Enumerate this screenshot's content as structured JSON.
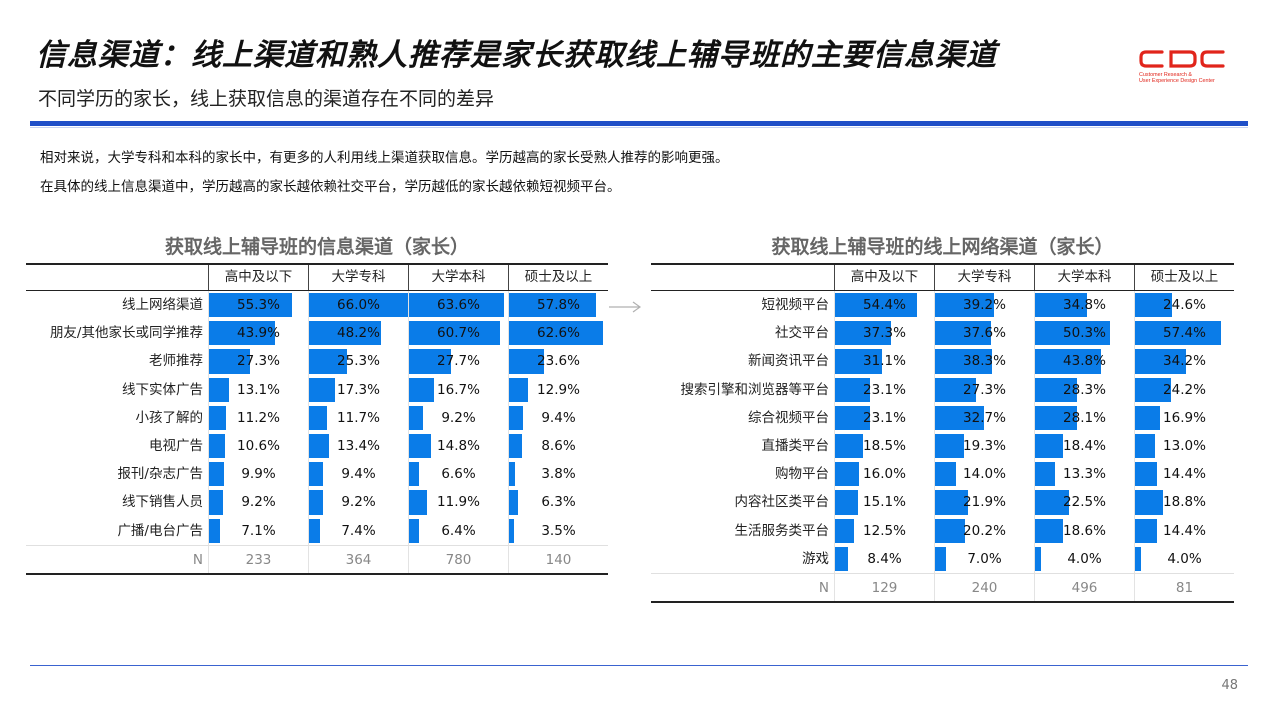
{
  "header": {
    "title": "信息渠道：线上渠道和熟人推荐是家长获取线上辅导班的主要信息渠道",
    "subtitle": "不同学历的家长，线上获取信息的渠道存在不同的差异",
    "logo": {
      "mark": "CDC",
      "line1": "Customer Research &",
      "line2": "User Experience Design Center",
      "color": "#e1251b"
    },
    "accent_color": "#1f4fc8"
  },
  "description": {
    "line1": "相对来说，大学专科和本科的家长中，有更多的人利用线上渠道获取信息。学历越高的家长受熟人推荐的影响更强。",
    "line2": "在具体的线上信息渠道中，学历越高的家长越依赖社交平台，学历越低的家长越依赖短视频平台。"
  },
  "left_table": {
    "title": "获取线上辅导班的信息渠道（家长）",
    "columns": [
      "高中及以下",
      "大学专科",
      "大学本科",
      "硕士及以上"
    ],
    "rows": [
      {
        "label": "线上网络渠道",
        "values": [
          "55.3%",
          "66.0%",
          "63.6%",
          "57.8%"
        ]
      },
      {
        "label": "朋友/其他家长或同学推荐",
        "values": [
          "43.9%",
          "48.2%",
          "60.7%",
          "62.6%"
        ]
      },
      {
        "label": "老师推荐",
        "values": [
          "27.3%",
          "25.3%",
          "27.7%",
          "23.6%"
        ]
      },
      {
        "label": "线下实体广告",
        "values": [
          "13.1%",
          "17.3%",
          "16.7%",
          "12.9%"
        ]
      },
      {
        "label": "小孩了解的",
        "values": [
          "11.2%",
          "11.7%",
          "9.2%",
          "9.4%"
        ]
      },
      {
        "label": "电视广告",
        "values": [
          "10.6%",
          "13.4%",
          "14.8%",
          "8.6%"
        ]
      },
      {
        "label": "报刊/杂志广告",
        "values": [
          "9.9%",
          "9.4%",
          "6.6%",
          "3.8%"
        ]
      },
      {
        "label": "线下销售人员",
        "values": [
          "9.2%",
          "9.2%",
          "11.9%",
          "6.3%"
        ]
      },
      {
        "label": "广播/电台广告",
        "values": [
          "7.1%",
          "7.4%",
          "6.4%",
          "3.5%"
        ]
      }
    ],
    "n_row": {
      "label": "N",
      "values": [
        "233",
        "364",
        "780",
        "140"
      ]
    }
  },
  "right_table": {
    "title": "获取线上辅导班的线上网络渠道（家长）",
    "columns": [
      "高中及以下",
      "大学专科",
      "大学本科",
      "硕士及以上"
    ],
    "rows": [
      {
        "label": "短视频平台",
        "values": [
          "54.4%",
          "39.2%",
          "34.8%",
          "24.6%"
        ]
      },
      {
        "label": "社交平台",
        "values": [
          "37.3%",
          "37.6%",
          "50.3%",
          "57.4%"
        ]
      },
      {
        "label": "新闻资讯平台",
        "values": [
          "31.1%",
          "38.3%",
          "43.8%",
          "34.2%"
        ]
      },
      {
        "label": "搜索引擎和浏览器等平台",
        "values": [
          "23.1%",
          "27.3%",
          "28.3%",
          "24.2%"
        ]
      },
      {
        "label": "综合视频平台",
        "values": [
          "23.1%",
          "32.7%",
          "28.1%",
          "16.9%"
        ]
      },
      {
        "label": "直播类平台",
        "values": [
          "18.5%",
          "19.3%",
          "18.4%",
          "13.0%"
        ]
      },
      {
        "label": "购物平台",
        "values": [
          "16.0%",
          "14.0%",
          "13.3%",
          "14.4%"
        ]
      },
      {
        "label": "内容社区类平台",
        "values": [
          "15.1%",
          "21.9%",
          "22.5%",
          "18.8%"
        ]
      },
      {
        "label": "生活服务类平台",
        "values": [
          "12.5%",
          "20.2%",
          "18.6%",
          "14.4%"
        ]
      },
      {
        "label": "游戏",
        "values": [
          "8.4%",
          "7.0%",
          "4.0%",
          "4.0%"
        ]
      }
    ],
    "n_row": {
      "label": "N",
      "values": [
        "129",
        "240",
        "496",
        "81"
      ]
    }
  },
  "bar_color": "#0a7ce8",
  "page_number": "48"
}
